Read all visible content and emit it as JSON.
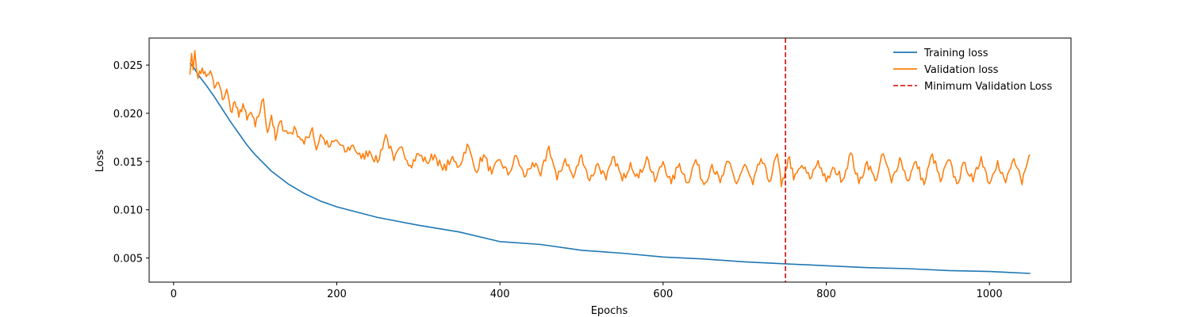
{
  "chart_data": {
    "type": "line",
    "title": "",
    "xlabel": "Epochs",
    "ylabel": "Loss",
    "xlim": [
      -30,
      1100
    ],
    "ylim": [
      0.0025,
      0.0278
    ],
    "xticks": [
      0,
      200,
      400,
      600,
      800,
      1000
    ],
    "yticks": [
      0.005,
      0.01,
      0.015,
      0.02,
      0.025
    ],
    "xtick_labels": [
      "0",
      "200",
      "400",
      "600",
      "800",
      "1000"
    ],
    "ytick_labels": [
      "0.005",
      "0.010",
      "0.015",
      "0.020",
      "0.025"
    ],
    "grid": false,
    "legend_position": "top-right",
    "series": [
      {
        "name": "Training loss",
        "color": "#1f77b4",
        "x": [
          20,
          25,
          30,
          40,
          50,
          60,
          70,
          80,
          90,
          100,
          120,
          140,
          160,
          180,
          200,
          250,
          300,
          350,
          400,
          450,
          500,
          550,
          600,
          650,
          700,
          750,
          800,
          850,
          900,
          950,
          1000,
          1050
        ],
        "y": [
          0.0252,
          0.0247,
          0.024,
          0.0229,
          0.0217,
          0.0204,
          0.0191,
          0.0179,
          0.0167,
          0.0157,
          0.014,
          0.0127,
          0.0117,
          0.0109,
          0.0103,
          0.0092,
          0.0084,
          0.0077,
          0.0067,
          0.0064,
          0.0058,
          0.0055,
          0.0051,
          0.0049,
          0.0046,
          0.0044,
          0.0042,
          0.004,
          0.0039,
          0.0037,
          0.0036,
          0.0034
        ]
      },
      {
        "name": "Validation loss",
        "color": "#ff7f0e",
        "x": [
          20,
          22,
          24,
          26,
          30,
          35,
          40,
          45,
          50,
          55,
          60,
          65,
          70,
          75,
          80,
          85,
          90,
          95,
          100,
          110,
          115,
          120,
          125,
          130,
          140,
          150,
          160,
          170,
          175,
          180,
          190,
          200,
          210,
          220,
          230,
          240,
          250,
          260,
          270,
          280,
          290,
          300,
          310,
          320,
          330,
          340,
          350,
          360,
          370,
          380,
          390,
          400,
          410,
          420,
          430,
          440,
          450,
          460,
          470,
          480,
          490,
          500,
          510,
          520,
          530,
          540,
          550,
          560,
          570,
          580,
          590,
          600,
          610,
          620,
          630,
          640,
          650,
          660,
          670,
          680,
          690,
          700,
          710,
          720,
          730,
          740,
          745,
          750,
          755,
          760,
          770,
          780,
          790,
          800,
          810,
          820,
          830,
          840,
          850,
          860,
          870,
          880,
          890,
          900,
          910,
          920,
          930,
          940,
          950,
          960,
          970,
          980,
          990,
          1000,
          1010,
          1020,
          1030,
          1040,
          1045,
          1050
        ],
        "y": [
          0.024,
          0.0262,
          0.0245,
          0.0265,
          0.0236,
          0.0247,
          0.0238,
          0.0244,
          0.0226,
          0.0232,
          0.0214,
          0.0225,
          0.0202,
          0.0212,
          0.0196,
          0.021,
          0.0193,
          0.0201,
          0.0186,
          0.0215,
          0.018,
          0.0198,
          0.0172,
          0.0191,
          0.0179,
          0.0183,
          0.0168,
          0.0185,
          0.0162,
          0.0178,
          0.0165,
          0.0172,
          0.016,
          0.0167,
          0.0153,
          0.0161,
          0.0149,
          0.0178,
          0.0151,
          0.0165,
          0.0146,
          0.0158,
          0.0149,
          0.0157,
          0.0141,
          0.0152,
          0.0145,
          0.0168,
          0.014,
          0.0157,
          0.0137,
          0.0152,
          0.0136,
          0.0156,
          0.0134,
          0.0149,
          0.0135,
          0.0166,
          0.0131,
          0.0153,
          0.0133,
          0.0157,
          0.013,
          0.0148,
          0.0131,
          0.0155,
          0.013,
          0.0149,
          0.0133,
          0.0155,
          0.0129,
          0.015,
          0.0127,
          0.0148,
          0.0128,
          0.0152,
          0.0126,
          0.0147,
          0.0128,
          0.015,
          0.0127,
          0.0147,
          0.0126,
          0.0153,
          0.0129,
          0.0158,
          0.0124,
          0.0141,
          0.0155,
          0.0131,
          0.0146,
          0.0132,
          0.0151,
          0.0129,
          0.0143,
          0.0131,
          0.0159,
          0.0127,
          0.015,
          0.013,
          0.0158,
          0.0128,
          0.0154,
          0.013,
          0.015,
          0.0126,
          0.0158,
          0.0129,
          0.0152,
          0.0127,
          0.0149,
          0.0129,
          0.0155,
          0.0127,
          0.0151,
          0.0128,
          0.0153,
          0.0126,
          0.0144,
          0.0157
        ]
      }
    ],
    "reference_lines": [
      {
        "name": "Minimum Validation Loss",
        "orientation": "vertical",
        "x": 750,
        "color": "#d62728",
        "style": "dashed"
      }
    ]
  }
}
